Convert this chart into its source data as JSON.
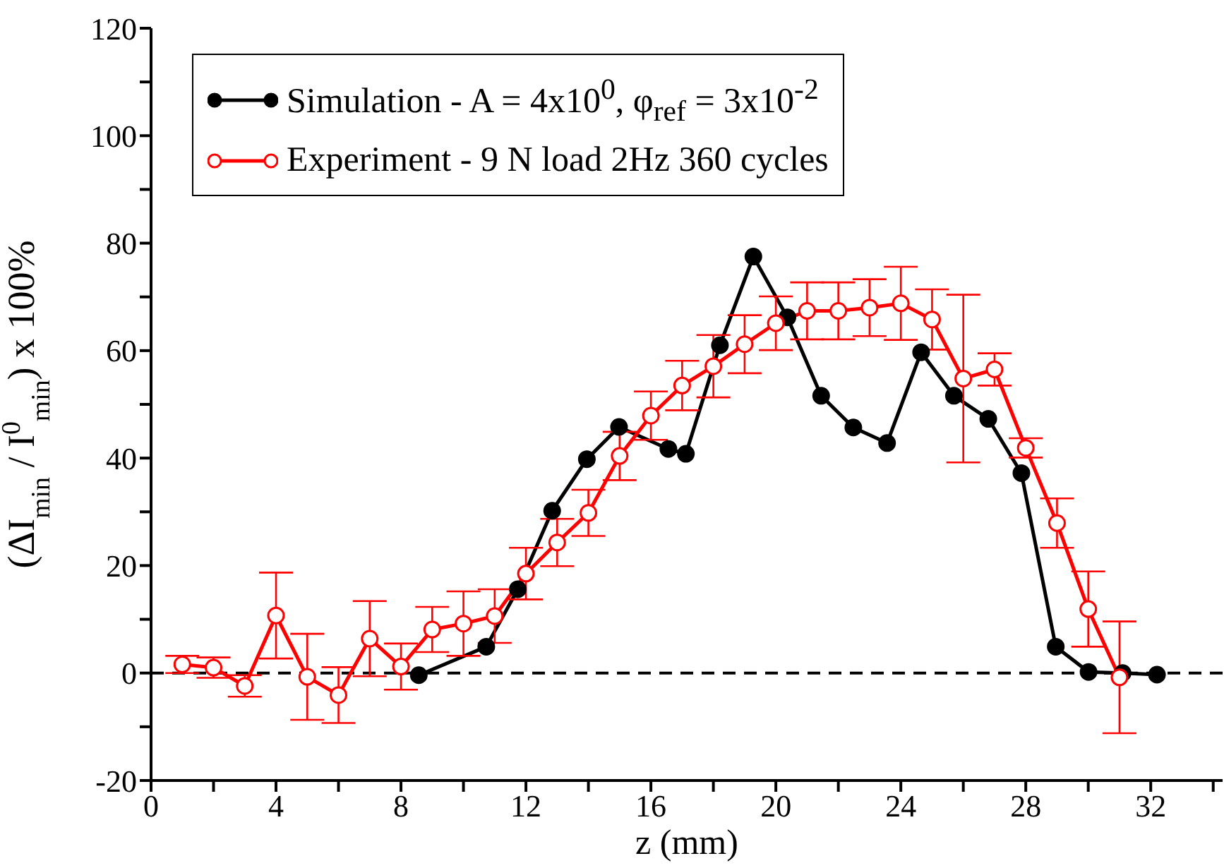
{
  "chart_data": {
    "type": "line",
    "xlabel": "z (mm)",
    "ylabel": "(ΔI$_{min}$ / I$^{0}$$_{min}$) x 100%",
    "xlim": [
      0,
      34.3
    ],
    "xticks": [
      0,
      {
        "value": 2,
        "label": null
      },
      4,
      {
        "value": 6,
        "label": null
      },
      8,
      {
        "value": 10,
        "label": null
      },
      12,
      {
        "value": 14,
        "label": null
      },
      16,
      {
        "value": 18,
        "label": null
      },
      20,
      {
        "value": 22,
        "label": null
      },
      24,
      {
        "value": 26,
        "label": null
      },
      28,
      {
        "value": 30,
        "label": null
      },
      32,
      {
        "value": 34,
        "label": null
      }
    ],
    "ylim": [
      -20,
      120
    ],
    "yticks": [
      -20,
      {
        "value": -10,
        "label": null
      },
      0,
      {
        "value": 10,
        "label": null
      },
      20,
      {
        "value": 30,
        "label": null
      },
      40,
      {
        "value": 50,
        "label": null
      },
      60,
      {
        "value": 70,
        "label": null
      },
      80,
      {
        "value": 90,
        "label": null
      },
      100,
      {
        "value": 110,
        "label": null
      },
      120
    ],
    "grid": false,
    "legend": "top left",
    "marker": "circle",
    "line_style": "solid",
    "ref_lines": [
      {
        "axis": "y",
        "value": 0,
        "color": "#000000",
        "line_style": "dashed"
      }
    ],
    "series": [
      {
        "name": "Simulation - A = 4x10$^{0}$, φ$_{ref}$ = 3x10$^{-2}$",
        "color": "#000000",
        "x": [
          8.57,
          10.73,
          11.74,
          12.84,
          13.95,
          14.98,
          16.56,
          17.12,
          18.21,
          19.28,
          20.37,
          21.45,
          22.48,
          23.56,
          24.65,
          25.7,
          26.8,
          27.86,
          28.96,
          30.01,
          31.1,
          32.2
        ],
        "values": [
          -0.4,
          4.9,
          15.6,
          30.2,
          39.8,
          45.8,
          41.7,
          40.8,
          61,
          77.5,
          66.2,
          51.6,
          45.7,
          42.8,
          59.7,
          51.6,
          47.3,
          37.2,
          4.9,
          0.2,
          0,
          -0.3
        ]
      },
      {
        "name": "Experiment - 9 N load 2Hz 360 cycles",
        "color": "#ff0000",
        "x": [
          1,
          2,
          3,
          4,
          5,
          6,
          7,
          8,
          9,
          10,
          11,
          12,
          13,
          14,
          15,
          16,
          17,
          18,
          19,
          20,
          21,
          22,
          23,
          24,
          25,
          26,
          27,
          28,
          29,
          30,
          31
        ],
        "values": [
          1.6,
          1,
          -2.4,
          10.7,
          -0.7,
          -4.1,
          6.4,
          1.2,
          8.1,
          9.2,
          10.6,
          18.5,
          24.3,
          29.8,
          40.4,
          47.9,
          53.5,
          57.1,
          61.2,
          65.1,
          67.4,
          67.4,
          68,
          68.8,
          65.8,
          54.8,
          56.5,
          41.9,
          27.9,
          11.9,
          -0.8
        ],
        "errors": [
          1.6,
          1.9,
          2,
          8,
          8,
          5.2,
          7,
          4.3,
          4.2,
          6,
          5,
          4.8,
          4.4,
          4.3,
          4.5,
          4.5,
          4.6,
          5.8,
          5.4,
          5,
          5.3,
          5.3,
          5.3,
          6.8,
          5.6,
          15.6,
          3,
          1.8,
          4.6,
          7,
          10.4
        ]
      }
    ]
  }
}
